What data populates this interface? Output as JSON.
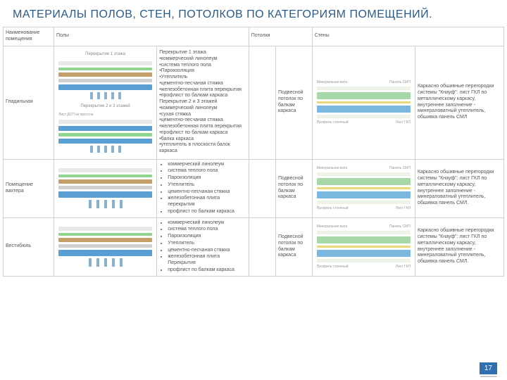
{
  "title": "МАТЕРИАЛЫ ПОЛОВ, СТЕН, ПОТОЛКОВ ПО КАТЕГОРИЯМ ПОМЕЩЕНИЙ.",
  "headers": {
    "name": "Наименование помещения",
    "floors": "Полы",
    "ceilings": "Потолки",
    "walls": "Стены"
  },
  "colors": {
    "floor_top": "#e8e8e8",
    "floor_blue": "#5a9fd4",
    "floor_green": "#8fd48f",
    "floor_brown": "#c4a068",
    "floor_grey": "#cfcfcf",
    "wall_pale": "#eef3e8",
    "wall_green": "#a8d8a8",
    "wall_blue": "#7ab8e0",
    "wall_yellow": "#e8d878"
  },
  "diagram_labels": {
    "floor1": "Перекрытие 1 этажа",
    "floor23": "Перекрытие 2 и 3 этажей",
    "leftcol": "Лист ДСП из прессов",
    "wall_top_l": "Минеральная вата",
    "wall_top_r": "Панель СМП",
    "wall_bot_l": "Профиль стоечный",
    "wall_bot_r": "Лист ГКЛ"
  },
  "rows": [
    {
      "name": "Гладильная",
      "floor_text": "Перекрытие 1 этажа\n•коммерческий линолеум\n•система теплого пола\n•Пароизоляция\n•Утеплитель\n•цементно-песчаная стяжка\n•железобетонная плита перекрытия\n•профлист по балкам каркаса\nПерекрытие 2 и 3 этажей\n•коммерческий линолеум\n•сухая стяжка\n•цементно-песчаная стяжка\n•железобетонная плита перекрытия\n•профлист по балкам каркаса\n•балка каркаса\n•утеплитель в плоскости балок каркаса",
      "ceil_text": "Подвесной потолок по балкам каркаса",
      "wall_text": "Каркасно обшивные перегородки системы \"Кнауф\": лист ГКЛ по металлическому каркасу, внутреннее заполнение - минераловатный утеплитель, обшивка панель СМЛ"
    },
    {
      "name": "Помещение вахтера",
      "floor_list": [
        "коммерческий линолеум",
        "система теплого пола",
        "Пароизоляция",
        "Утеплитель",
        "цементно-песчаная стяжка",
        "железобетонная плита перекрытия",
        "профлист по балкам каркаса"
      ],
      "ceil_text": "Подвесной потолок по балкам каркаса",
      "wall_text": "Каркасно обшивные перегородки системы \"Кнауф\": лист ГКЛ по металлическому каркасу, внутреннее заполнение - минераловатный утеплитель, обшивка панель СМЛ."
    },
    {
      "name": "Вестибюль",
      "floor_list": [
        "коммерческий линолеум",
        "система теплого пола",
        "Пароизоляция",
        "Утеплитель",
        "цементно-песчаная стяжка",
        "железобетонная плита Перекрытия",
        "профлист по балкам каркаса"
      ],
      "ceil_text": "Подвесной потолок по балкам каркаса",
      "wall_text": "Каркасно обшивные перегородки системы \"Кнауф\": лист ГКЛ по металлическому каркасу, внутреннее заполнение - минераловатный утеплитель, обшивка панель СМЛ."
    }
  ],
  "page_number": "17"
}
